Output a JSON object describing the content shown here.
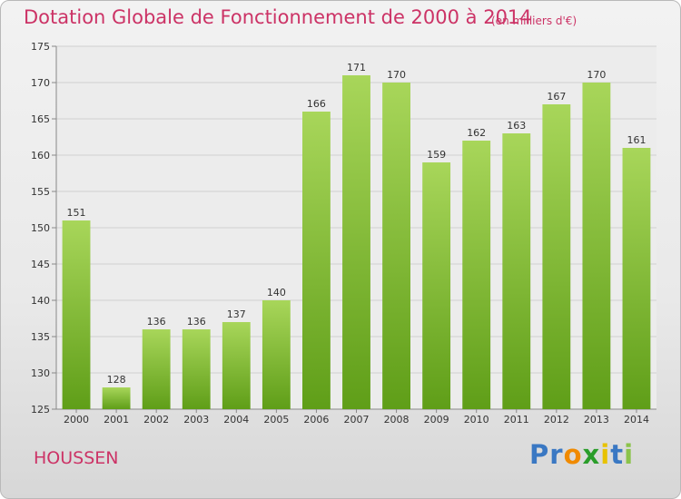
{
  "header": {
    "title": "Dotation Globale de Fonctionnement de 2000 à 2014",
    "unit": "(en milliers d'€)"
  },
  "footer": {
    "commune": "HOUSSEN",
    "logo_text": "Proxiti",
    "logo_letters": [
      "P",
      "r",
      "o",
      "x",
      "i",
      "t",
      "i"
    ],
    "logo_colors": [
      "#3a78c3",
      "#3a78c3",
      "#f08a00",
      "#2a9d2a",
      "#e8c200",
      "#3a78c3",
      "#8bc34a"
    ]
  },
  "colors": {
    "bar_top": "#a8d65a",
    "bar_bottom": "#5f9e18",
    "accent": "#cc3366"
  },
  "chart_data": {
    "type": "bar",
    "title": "Dotation Globale de Fonctionnement de 2000 à 2014",
    "xlabel": "",
    "ylabel": "",
    "categories": [
      "2000",
      "2001",
      "2002",
      "2003",
      "2004",
      "2005",
      "2006",
      "2007",
      "2008",
      "2009",
      "2010",
      "2011",
      "2012",
      "2013",
      "2014"
    ],
    "values": [
      151,
      128,
      136,
      136,
      137,
      140,
      166,
      171,
      170,
      159,
      162,
      163,
      167,
      170,
      161
    ],
    "ylim": [
      125,
      175
    ],
    "yticks": [
      125,
      130,
      135,
      140,
      145,
      150,
      155,
      160,
      165,
      170,
      175
    ],
    "grid": true
  }
}
